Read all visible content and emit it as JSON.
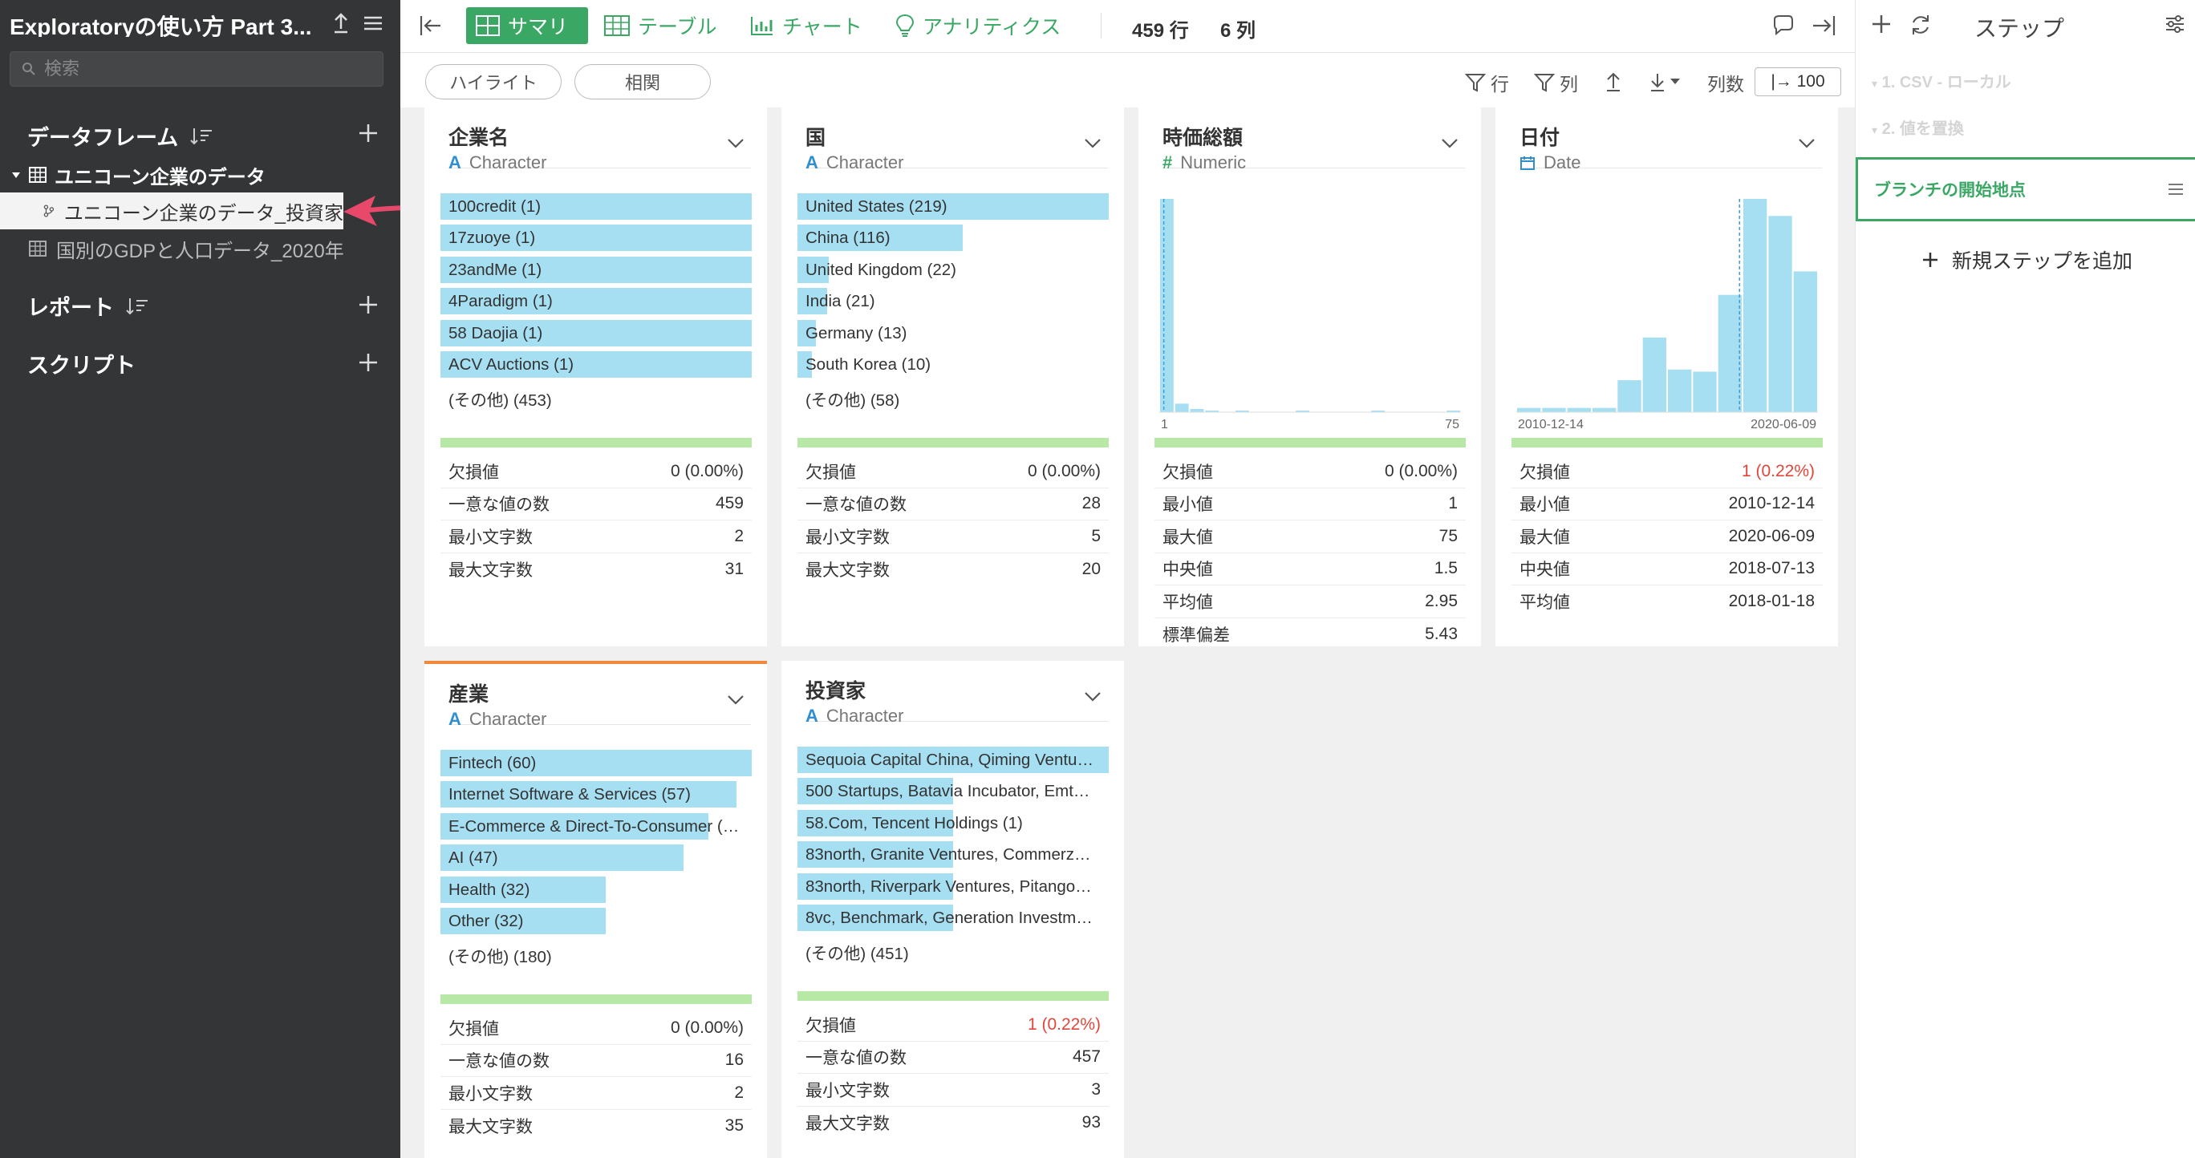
{
  "sidebar": {
    "project_title": "Exploratoryの使い方 Part 3...",
    "search_placeholder": "検索",
    "dataframes_label": "データフレーム",
    "dataframes": [
      {
        "label": "ユニコーン企業のデータ"
      },
      {
        "label": "ユニコーン企業のデータ_投資家"
      },
      {
        "label": "国別のGDPと人口データ_2020年"
      }
    ],
    "reports_label": "レポート",
    "scripts_label": "スクリプト"
  },
  "toolbar": {
    "summary": "サマリ",
    "table": "テーブル",
    "chart": "チャート",
    "analytics": "アナリティクス",
    "rows": "459 行",
    "cols": "6 列"
  },
  "subbar": {
    "highlight": "ハイライト",
    "correlation": "相関",
    "row_filter": "行",
    "col_filter": "列",
    "col_count_label": "列数",
    "col_count_value": "|→ 100"
  },
  "steps_panel": {
    "title": "ステップ",
    "steps": [
      {
        "label": "1. CSV - ローカル"
      },
      {
        "label": "2. 値を置換"
      }
    ],
    "branch_start": "ブランチの開始地点",
    "add_step": "新規ステップを追加"
  },
  "colors": {
    "accent": "#3aa864",
    "bar": "#a6dff2",
    "missing_red": "#e0473a",
    "highlight_orange": "#ef8a3c"
  },
  "cards": [
    {
      "title": "企業名",
      "type": "Character",
      "type_icon": "A",
      "bars": [
        {
          "label": "100credit (1)",
          "frac": 1.0
        },
        {
          "label": "17zuoye (1)",
          "frac": 1.0
        },
        {
          "label": "23andMe (1)",
          "frac": 1.0
        },
        {
          "label": "4Paradigm (1)",
          "frac": 1.0
        },
        {
          "label": "58 Daojia (1)",
          "frac": 1.0
        },
        {
          "label": "ACV Auctions (1)",
          "frac": 1.0
        }
      ],
      "other": "(その他) (453)",
      "stats": [
        {
          "label": "欠損値",
          "value": "0 (0.00%)"
        },
        {
          "label": "一意な値の数",
          "value": "459"
        },
        {
          "label": "最小文字数",
          "value": "2"
        },
        {
          "label": "最大文字数",
          "value": "31"
        }
      ]
    },
    {
      "title": "国",
      "type": "Character",
      "type_icon": "A",
      "bars": [
        {
          "label": "United States (219)",
          "frac": 1.0
        },
        {
          "label": "China (116)",
          "frac": 0.53
        },
        {
          "label": "United Kingdom (22)",
          "frac": 0.1
        },
        {
          "label": "India (21)",
          "frac": 0.096
        },
        {
          "label": "Germany (13)",
          "frac": 0.06
        },
        {
          "label": "South Korea (10)",
          "frac": 0.046
        }
      ],
      "other": "(その他) (58)",
      "stats": [
        {
          "label": "欠損値",
          "value": "0 (0.00%)"
        },
        {
          "label": "一意な値の数",
          "value": "28"
        },
        {
          "label": "最小文字数",
          "value": "5"
        },
        {
          "label": "最大文字数",
          "value": "20"
        }
      ]
    },
    {
      "title": "時価総額",
      "type": "Numeric",
      "type_icon": "#",
      "hist": {
        "min_label": "1",
        "max_label": "75",
        "heights": [
          1.0,
          0.04,
          0.015,
          0.005,
          0,
          0.005,
          0,
          0,
          0,
          0.005,
          0,
          0,
          0,
          0,
          0.005,
          0,
          0,
          0,
          0,
          0.005
        ],
        "marker_frac": 0.015
      },
      "stats": [
        {
          "label": "欠損値",
          "value": "0 (0.00%)"
        },
        {
          "label": "最小値",
          "value": "1"
        },
        {
          "label": "最大値",
          "value": "75"
        },
        {
          "label": "中央値",
          "value": "1.5"
        },
        {
          "label": "平均値",
          "value": "2.95"
        },
        {
          "label": "標準偏差",
          "value": "5.43"
        }
      ]
    },
    {
      "title": "日付",
      "type": "Date",
      "type_icon": "cal",
      "hist": {
        "min_label": "2010-12-14",
        "max_label": "2020-06-09",
        "heights": [
          0.02,
          0.02,
          0.02,
          0.02,
          0.15,
          0.35,
          0.2,
          0.19,
          0.55,
          1.0,
          0.92,
          0.66
        ],
        "marker_frac": 0.74
      },
      "stats": [
        {
          "label": "欠損値",
          "value": "1 (0.22%)",
          "red": true
        },
        {
          "label": "最小値",
          "value": "2010-12-14"
        },
        {
          "label": "最大値",
          "value": "2020-06-09"
        },
        {
          "label": "中央値",
          "value": "2018-07-13"
        },
        {
          "label": "平均値",
          "value": "2018-01-18"
        }
      ]
    },
    {
      "title": "産業",
      "type": "Character",
      "type_icon": "A",
      "bars": [
        {
          "label": "Fintech (60)",
          "frac": 1.0
        },
        {
          "label": "Internet Software & Services (57)",
          "frac": 0.95
        },
        {
          "label": "E-Commerce & Direct-To-Consumer (…",
          "frac": 0.86
        },
        {
          "label": "AI (47)",
          "frac": 0.78
        },
        {
          "label": "Health (32)",
          "frac": 0.53
        },
        {
          "label": "Other (32)",
          "frac": 0.53
        }
      ],
      "other": "(その他) (180)",
      "stats": [
        {
          "label": "欠損値",
          "value": "0 (0.00%)"
        },
        {
          "label": "一意な値の数",
          "value": "16"
        },
        {
          "label": "最小文字数",
          "value": "2"
        },
        {
          "label": "最大文字数",
          "value": "35"
        }
      ]
    },
    {
      "title": "投資家",
      "type": "Character",
      "type_icon": "A",
      "bars": [
        {
          "label": "Sequoia Capital China, Qiming Ventu…",
          "frac": 1.0
        },
        {
          "label": "500 Startups, Batavia Incubator, Emt…",
          "frac": 0.5
        },
        {
          "label": "58.Com, Tencent Holdings (1)",
          "frac": 0.5
        },
        {
          "label": "83north, Granite Ventures, Commerz…",
          "frac": 0.5
        },
        {
          "label": "83north, Riverpark Ventures, Pitango…",
          "frac": 0.5
        },
        {
          "label": "8vc, Benchmark, Generation Investm…",
          "frac": 0.5
        }
      ],
      "other": "(その他) (451)",
      "stats": [
        {
          "label": "欠損値",
          "value": "1 (0.22%)",
          "red": true
        },
        {
          "label": "一意な値の数",
          "value": "457"
        },
        {
          "label": "最小文字数",
          "value": "3"
        },
        {
          "label": "最大文字数",
          "value": "93"
        }
      ]
    }
  ]
}
